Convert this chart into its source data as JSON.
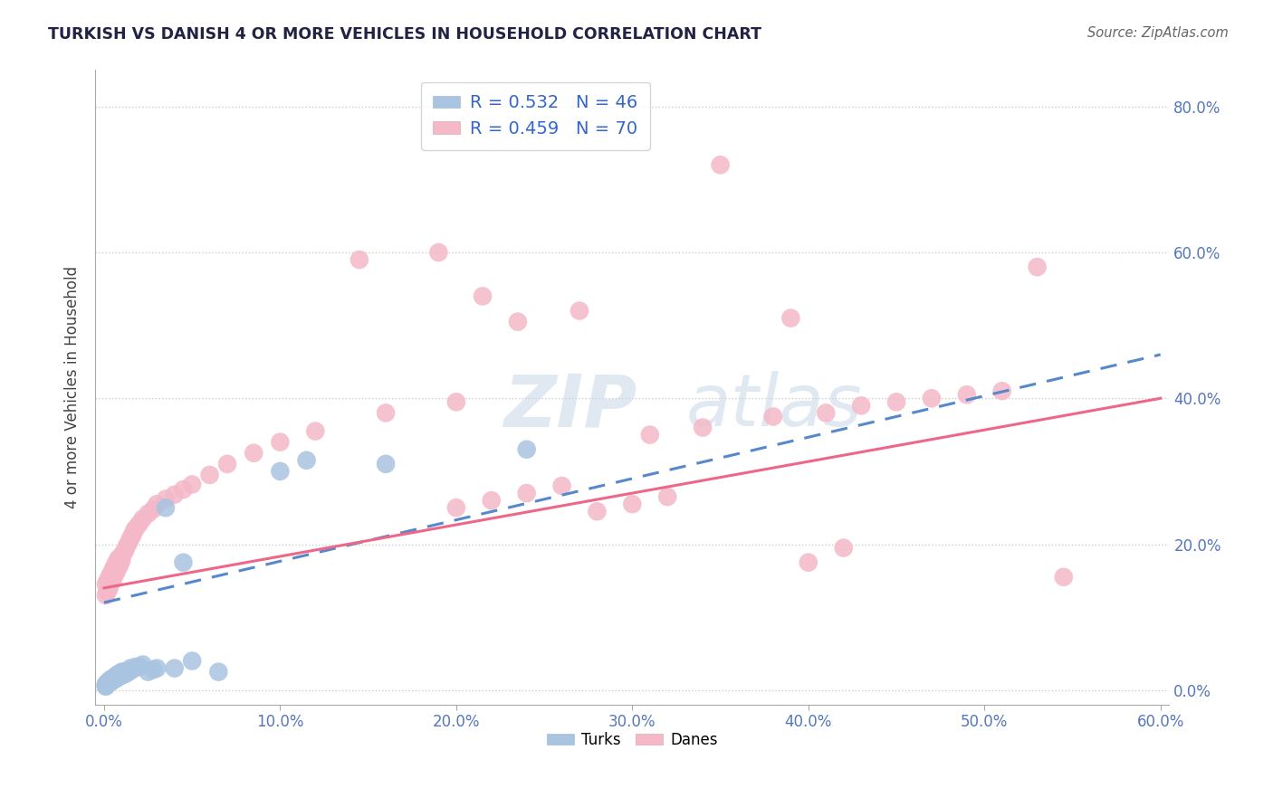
{
  "title": "TURKISH VS DANISH 4 OR MORE VEHICLES IN HOUSEHOLD CORRELATION CHART",
  "source": "Source: ZipAtlas.com",
  "turks_R": "0.532",
  "turks_N": "46",
  "danes_R": "0.459",
  "danes_N": "70",
  "turks_color": "#a8c4e0",
  "danes_color": "#f4b8c8",
  "turks_line_color": "#5588cc",
  "danes_line_color": "#ee6688",
  "background_color": "#ffffff",
  "xlim": [
    -0.005,
    0.605
  ],
  "ylim": [
    -0.02,
    0.85
  ],
  "x_tick_vals": [
    0.0,
    0.1,
    0.2,
    0.3,
    0.4,
    0.5,
    0.6
  ],
  "x_tick_labels": [
    "0.0%",
    "10.0%",
    "20.0%",
    "30.0%",
    "40.0%",
    "50.0%",
    "60.0%"
  ],
  "y_tick_vals": [
    0.0,
    0.2,
    0.4,
    0.6,
    0.8
  ],
  "y_tick_labels": [
    "0.0%",
    "20.0%",
    "40.0%",
    "60.0%",
    "80.0%"
  ],
  "turks_x": [
    0.001,
    0.001,
    0.001,
    0.001,
    0.002,
    0.002,
    0.002,
    0.002,
    0.003,
    0.003,
    0.003,
    0.004,
    0.004,
    0.004,
    0.005,
    0.005,
    0.006,
    0.006,
    0.007,
    0.007,
    0.008,
    0.008,
    0.009,
    0.01,
    0.01,
    0.011,
    0.012,
    0.013,
    0.014,
    0.015,
    0.016,
    0.018,
    0.02,
    0.022,
    0.025,
    0.028,
    0.03,
    0.035,
    0.04,
    0.045,
    0.05,
    0.065,
    0.1,
    0.115,
    0.16,
    0.24
  ],
  "turks_y": [
    0.005,
    0.006,
    0.007,
    0.008,
    0.008,
    0.009,
    0.01,
    0.011,
    0.01,
    0.012,
    0.013,
    0.012,
    0.014,
    0.015,
    0.013,
    0.016,
    0.015,
    0.018,
    0.016,
    0.02,
    0.018,
    0.022,
    0.02,
    0.02,
    0.025,
    0.025,
    0.022,
    0.025,
    0.025,
    0.03,
    0.028,
    0.032,
    0.032,
    0.035,
    0.025,
    0.028,
    0.03,
    0.25,
    0.03,
    0.175,
    0.04,
    0.025,
    0.3,
    0.315,
    0.31,
    0.33
  ],
  "danes_x": [
    0.001,
    0.001,
    0.002,
    0.002,
    0.003,
    0.003,
    0.004,
    0.004,
    0.005,
    0.005,
    0.006,
    0.006,
    0.007,
    0.007,
    0.008,
    0.008,
    0.009,
    0.01,
    0.01,
    0.011,
    0.012,
    0.013,
    0.014,
    0.015,
    0.016,
    0.017,
    0.018,
    0.02,
    0.022,
    0.025,
    0.028,
    0.03,
    0.035,
    0.04,
    0.045,
    0.05,
    0.06,
    0.07,
    0.085,
    0.1,
    0.12,
    0.145,
    0.16,
    0.19,
    0.2,
    0.215,
    0.235,
    0.27,
    0.31,
    0.34,
    0.38,
    0.39,
    0.41,
    0.43,
    0.45,
    0.47,
    0.49,
    0.51,
    0.53,
    0.545,
    0.2,
    0.22,
    0.24,
    0.26,
    0.28,
    0.3,
    0.32,
    0.35,
    0.4,
    0.42
  ],
  "danes_y": [
    0.13,
    0.145,
    0.135,
    0.15,
    0.14,
    0.155,
    0.148,
    0.16,
    0.15,
    0.165,
    0.158,
    0.17,
    0.162,
    0.175,
    0.168,
    0.18,
    0.172,
    0.178,
    0.185,
    0.188,
    0.192,
    0.198,
    0.202,
    0.208,
    0.212,
    0.218,
    0.222,
    0.228,
    0.235,
    0.242,
    0.248,
    0.255,
    0.262,
    0.268,
    0.275,
    0.282,
    0.295,
    0.31,
    0.325,
    0.34,
    0.355,
    0.59,
    0.38,
    0.6,
    0.395,
    0.54,
    0.505,
    0.52,
    0.35,
    0.36,
    0.375,
    0.51,
    0.38,
    0.39,
    0.395,
    0.4,
    0.405,
    0.41,
    0.58,
    0.155,
    0.25,
    0.26,
    0.27,
    0.28,
    0.245,
    0.255,
    0.265,
    0.72,
    0.175,
    0.195
  ],
  "turks_line_x": [
    0.0,
    0.6
  ],
  "turks_line_y": [
    0.12,
    0.46
  ],
  "danes_line_x": [
    0.0,
    0.6
  ],
  "danes_line_y": [
    0.14,
    0.4
  ]
}
